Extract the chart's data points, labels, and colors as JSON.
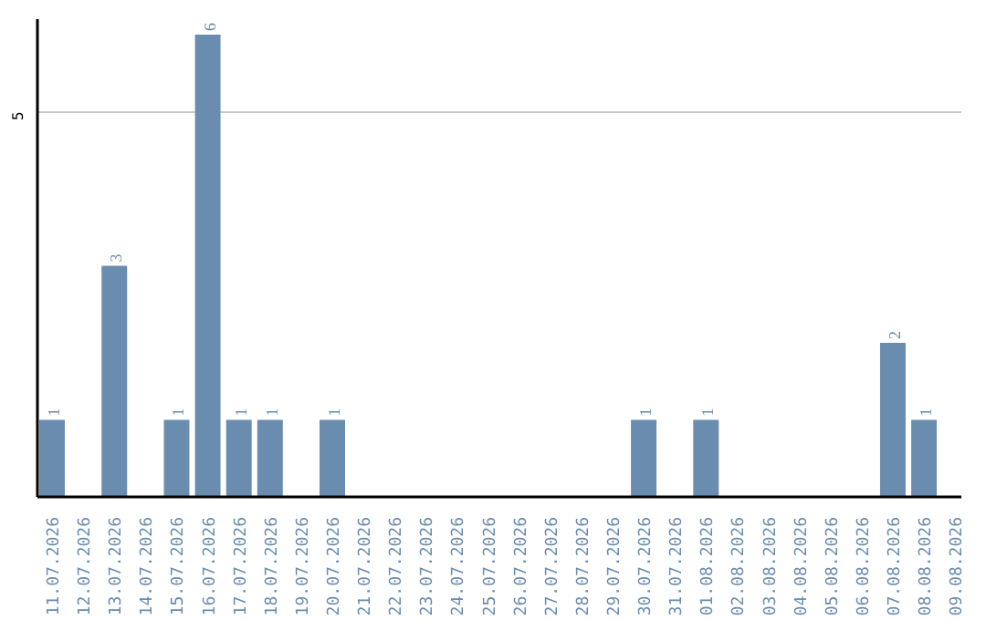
{
  "chart_data": {
    "type": "bar",
    "categories": [
      "11.07.2026",
      "12.07.2026",
      "13.07.2026",
      "14.07.2026",
      "15.07.2026",
      "16.07.2026",
      "17.07.2026",
      "18.07.2026",
      "19.07.2026",
      "20.07.2026",
      "21.07.2026",
      "22.07.2026",
      "23.07.2026",
      "24.07.2026",
      "25.07.2026",
      "26.07.2026",
      "27.07.2026",
      "28.07.2026",
      "29.07.2026",
      "30.07.2026",
      "31.07.2026",
      "01.08.2026",
      "02.08.2026",
      "03.08.2026",
      "04.08.2026",
      "05.08.2026",
      "06.08.2026",
      "07.08.2026",
      "08.08.2026",
      "09.08.2026"
    ],
    "values": [
      1,
      0,
      3,
      0,
      1,
      6,
      1,
      1,
      0,
      1,
      0,
      0,
      0,
      0,
      0,
      0,
      0,
      0,
      0,
      1,
      0,
      1,
      0,
      0,
      0,
      0,
      0,
      2,
      1,
      0
    ],
    "value_labels": [
      "1",
      null,
      "3",
      null,
      "1",
      "6",
      "1",
      "1",
      null,
      "1",
      null,
      null,
      null,
      null,
      null,
      null,
      null,
      null,
      null,
      "1",
      null,
      "1",
      null,
      null,
      null,
      null,
      null,
      "2",
      "1",
      null
    ],
    "color": "#6a8caf",
    "ylim": [
      0,
      6.2
    ],
    "yticks": [
      5
    ],
    "grid": "y"
  }
}
